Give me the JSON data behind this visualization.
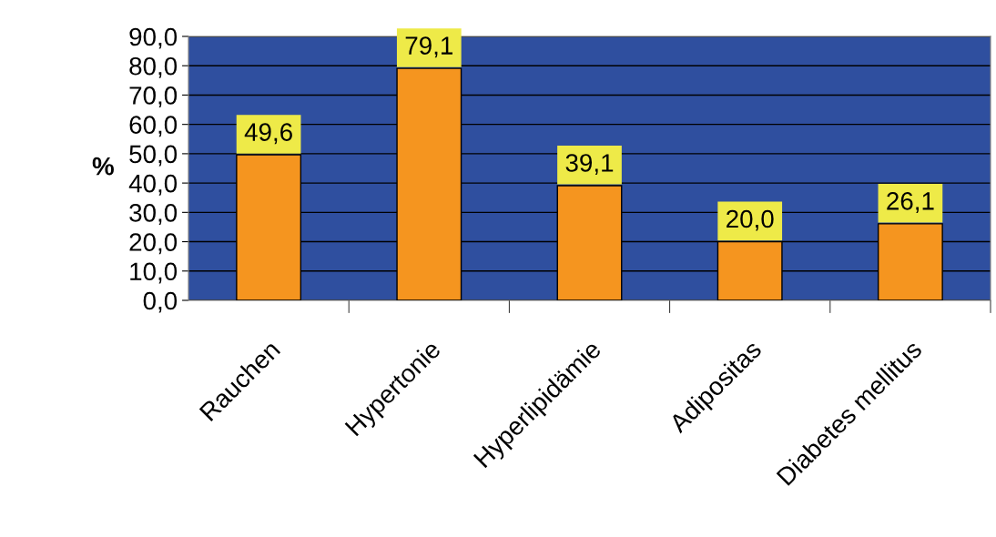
{
  "chart_data": {
    "type": "bar",
    "ylabel": "%",
    "categories": [
      "Rauchen",
      "Hypertonie",
      "Hyperlipidämie",
      "Adipositas",
      "Diabetes mellitus"
    ],
    "values": [
      49.6,
      79.1,
      39.1,
      20.0,
      26.1
    ],
    "value_labels": [
      "49,6",
      "79,1",
      "39,1",
      "20,0",
      "26,1"
    ],
    "color": "#f5951f",
    "ylim": [
      0,
      90
    ],
    "yticks": [
      {
        "value": 0,
        "label": "0,0"
      },
      {
        "value": 10,
        "label": "10,0"
      },
      {
        "value": 20,
        "label": "20,0"
      },
      {
        "value": 30,
        "label": "30,0"
      },
      {
        "value": 40,
        "label": "40,0"
      },
      {
        "value": 50,
        "label": "50,0"
      },
      {
        "value": 60,
        "label": "60,0"
      },
      {
        "value": 70,
        "label": "70,0"
      },
      {
        "value": 80,
        "label": "80,0"
      },
      {
        "value": 90,
        "label": "90,0"
      }
    ],
    "grid": "y",
    "legend": false
  }
}
